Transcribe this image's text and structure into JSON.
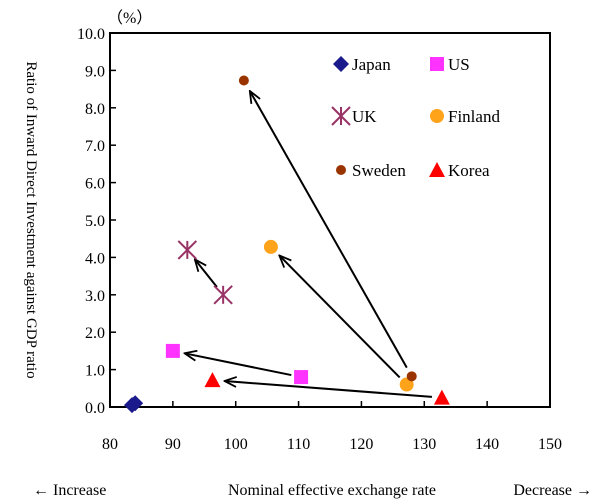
{
  "chart_data": {
    "type": "scatter",
    "unit_label": "（%）",
    "xlabel": "Nominal effective exchange rate",
    "x_left_note": "← Increase",
    "x_right_note": "Decrease →",
    "ylabel": "Ratio of Inward Direct Investment against GDP ratio",
    "xlim": [
      80,
      150
    ],
    "ylim": [
      0,
      10
    ],
    "x_ticks": [
      "80",
      "90",
      "100",
      "110",
      "120",
      "130",
      "140",
      "150"
    ],
    "y_ticks": [
      "0.0",
      "1.0",
      "2.0",
      "3.0",
      "4.0",
      "5.0",
      "6.0",
      "7.0",
      "8.0",
      "9.0",
      "10.0"
    ],
    "grid": false,
    "legend_position": "top-right",
    "series": [
      {
        "name": "Japan",
        "marker": "diamond",
        "color": "#1a1a8c",
        "points": [
          [
            84.0,
            0.1
          ],
          [
            83.5,
            0.05
          ]
        ]
      },
      {
        "name": "US",
        "marker": "square",
        "color": "#ff33ff",
        "points": [
          [
            110.4,
            0.8
          ],
          [
            90.0,
            1.5
          ]
        ]
      },
      {
        "name": "UK",
        "marker": "asterisk",
        "color": "#993366",
        "points": [
          [
            98.0,
            3.0
          ],
          [
            92.3,
            4.2
          ]
        ]
      },
      {
        "name": "Finland",
        "marker": "circle",
        "color": "#ffa31a",
        "points": [
          [
            127.2,
            0.6
          ],
          [
            105.6,
            4.28
          ]
        ]
      },
      {
        "name": "Sweden",
        "marker": "dot",
        "color": "#993300",
        "points": [
          [
            128.0,
            0.82
          ],
          [
            101.3,
            8.73
          ]
        ]
      },
      {
        "name": "Korea",
        "marker": "triangle",
        "color": "#ff0000",
        "points": [
          [
            132.8,
            0.25
          ],
          [
            96.3,
            0.72
          ]
        ]
      }
    ],
    "arrows": [
      {
        "series": "US",
        "from": [
          110.4,
          0.8
        ],
        "to": [
          90.0,
          1.5
        ]
      },
      {
        "series": "UK",
        "from": [
          98.0,
          3.0
        ],
        "to": [
          92.3,
          4.2
        ]
      },
      {
        "series": "Finland",
        "from": [
          127.2,
          0.6
        ],
        "to": [
          105.6,
          4.28
        ]
      },
      {
        "series": "Sweden",
        "from": [
          128.0,
          0.82
        ],
        "to": [
          101.3,
          8.73
        ]
      },
      {
        "series": "Korea",
        "from": [
          132.8,
          0.25
        ],
        "to": [
          96.3,
          0.72
        ]
      }
    ]
  }
}
